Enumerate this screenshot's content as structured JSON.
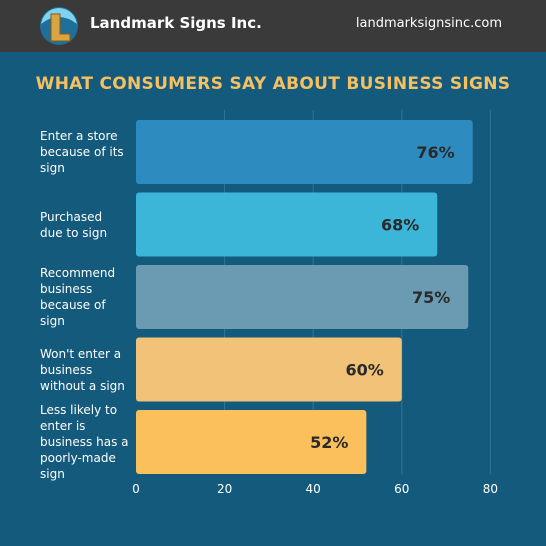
{
  "header": {
    "brand": "Landmark Signs Inc.",
    "website": "landmarksignsinc.com",
    "logo_icon": "landmark-l-logo-icon"
  },
  "colors": {
    "background": "#135a7c",
    "header": "#3a3a3a",
    "title": "#f5c062"
  },
  "chart_data": {
    "type": "bar",
    "orientation": "horizontal",
    "title": "WHAT CONSUMERS SAY ABOUT BUSINESS SIGNS",
    "categories": [
      "Enter a store because of its sign",
      "Purchased due to sign",
      "Recommend business because of sign",
      "Won't enter a business without a sign",
      "Less likely to enter is business has a poorly-made sign"
    ],
    "category_lines": [
      [
        "Enter a store",
        "because of its",
        "sign"
      ],
      [
        "Purchased",
        "due to sign"
      ],
      [
        "Recommend",
        "business",
        "because of",
        "sign"
      ],
      [
        "Won't enter a",
        "business",
        "without a sign"
      ],
      [
        "Less likely to",
        "enter is",
        "business has a",
        "poorly-made",
        "sign"
      ]
    ],
    "values": [
      76,
      68,
      75,
      60,
      52
    ],
    "value_labels": [
      "76%",
      "68%",
      "75%",
      "60%",
      "52%"
    ],
    "bar_colors": [
      "#2e8bc0",
      "#3bb5d8",
      "#6a9bb3",
      "#f2c278",
      "#fbbf5c"
    ],
    "xlim": [
      0,
      80
    ],
    "xticks": [
      0,
      20,
      40,
      60,
      80
    ],
    "grid": true
  }
}
